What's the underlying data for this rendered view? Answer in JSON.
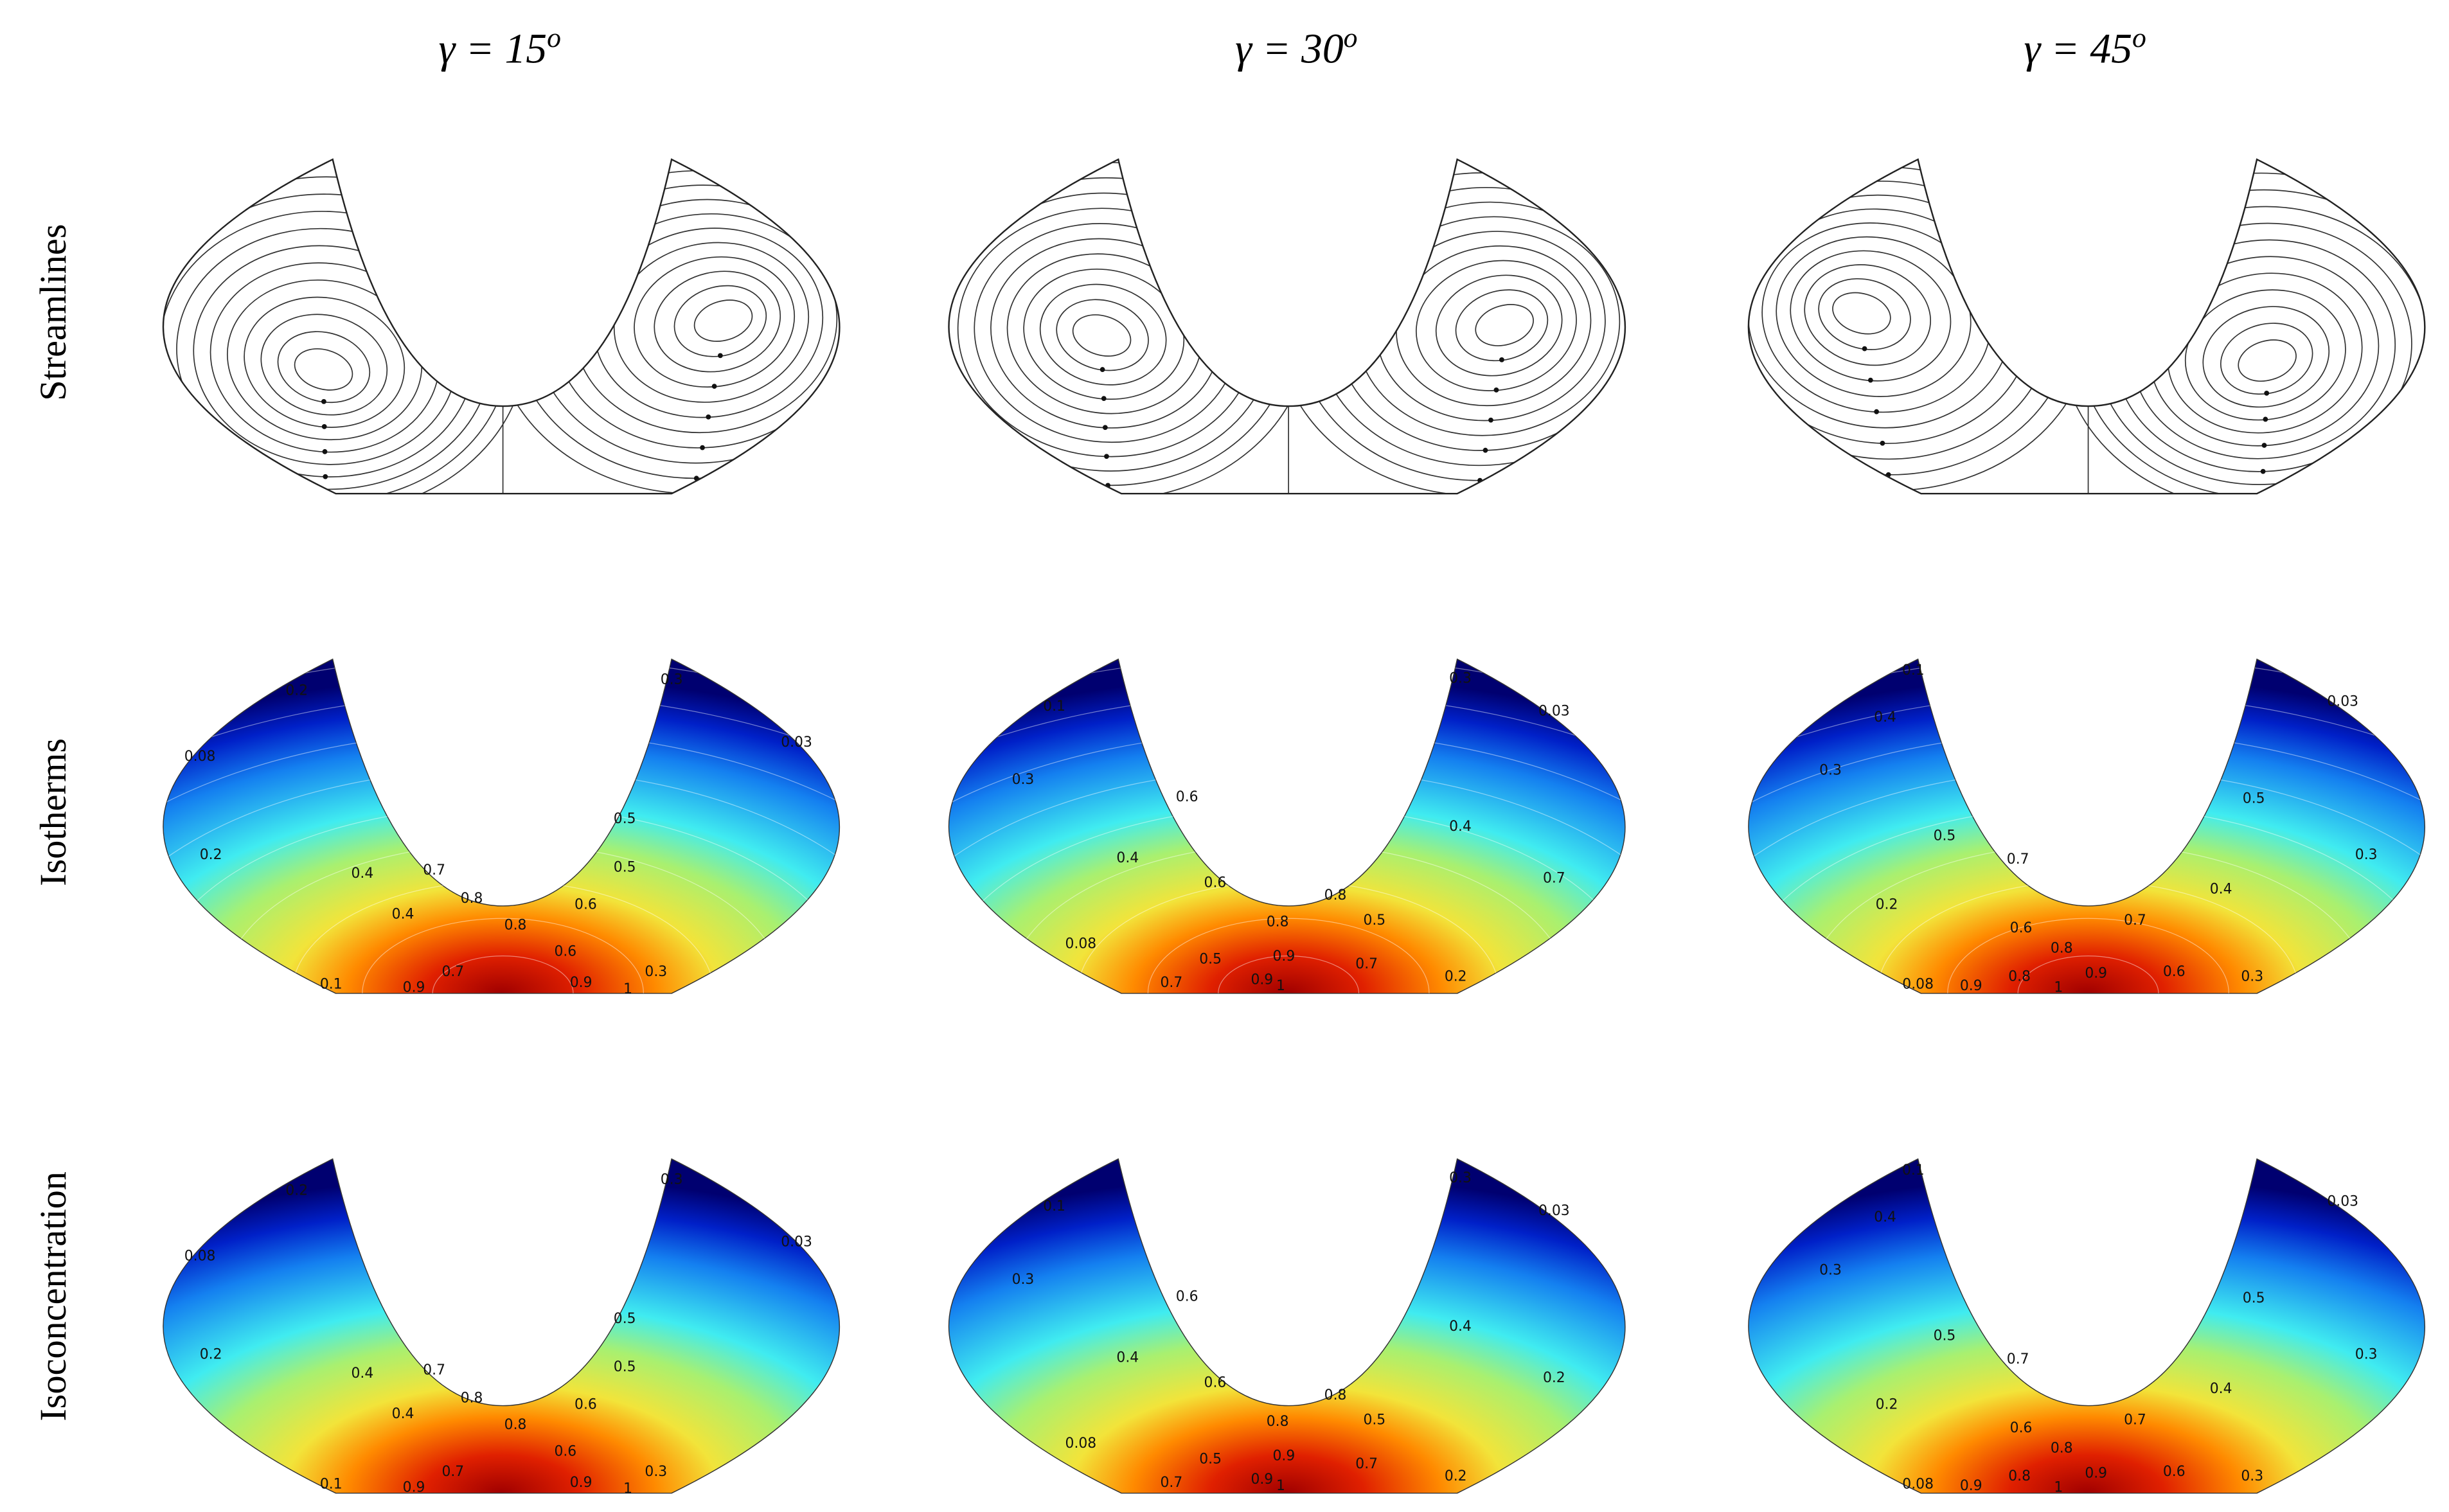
{
  "columns": [
    {
      "base": "γ = 15",
      "sup": "o"
    },
    {
      "base": "γ = 30",
      "sup": "o"
    },
    {
      "base": "γ = 45",
      "sup": "o"
    }
  ],
  "rows": [
    {
      "label": "Streamlines"
    },
    {
      "label": "Isotherms",
      "panels": [
        {
          "contour_labels": [
            "0.2",
            "0.08",
            "0.2",
            "0.4",
            "0.7",
            "0.5",
            "0.5",
            "0.3",
            "0.03",
            "0.8",
            "0.6",
            "0.4",
            "0.8",
            "0.6",
            "0.7",
            "0.3",
            "0.1",
            "0.9",
            "0.9",
            "1"
          ]
        },
        {
          "contour_labels": [
            "0.1",
            "0.3",
            "0.03",
            "0.3",
            "0.6",
            "0.4",
            "0.4",
            "0.6",
            "0.7",
            "0.8",
            "0.5",
            "0.8",
            "0.9",
            "0.5",
            "0.7",
            "0.08",
            "0.7",
            "0.9",
            "1",
            "0.2"
          ]
        },
        {
          "contour_labels": [
            "0.1",
            "0.4",
            "0.03",
            "0.3",
            "0.5",
            "0.5",
            "0.7",
            "0.3",
            "0.4",
            "0.2",
            "0.6",
            "0.7",
            "0.8",
            "0.8",
            "0.9",
            "0.6",
            "0.08",
            "0.9",
            "1",
            "0.3"
          ]
        }
      ]
    },
    {
      "label": "Isoconcentration",
      "panels": [
        {
          "contour_labels": [
            "0.2",
            "0.08",
            "0.2",
            "0.4",
            "0.7",
            "0.5",
            "0.5",
            "0.3",
            "0.03",
            "0.8",
            "0.6",
            "0.4",
            "0.8",
            "0.6",
            "0.7",
            "0.3",
            "0.1",
            "0.9",
            "0.9",
            "1"
          ]
        },
        {
          "contour_labels": [
            "0.1",
            "0.3",
            "0.03",
            "0.3",
            "0.6",
            "0.4",
            "0.4",
            "0.6",
            "0.2",
            "0.8",
            "0.5",
            "0.8",
            "0.9",
            "0.5",
            "0.7",
            "0.08",
            "0.7",
            "0.9",
            "1",
            "0.2"
          ]
        },
        {
          "contour_labels": [
            "0.1",
            "0.4",
            "0.03",
            "0.3",
            "0.5",
            "0.5",
            "0.7",
            "0.3",
            "0.4",
            "0.2",
            "0.6",
            "0.7",
            "0.8",
            "0.8",
            "0.9",
            "0.6",
            "0.08",
            "0.9",
            "1",
            "0.3"
          ]
        }
      ]
    }
  ]
}
